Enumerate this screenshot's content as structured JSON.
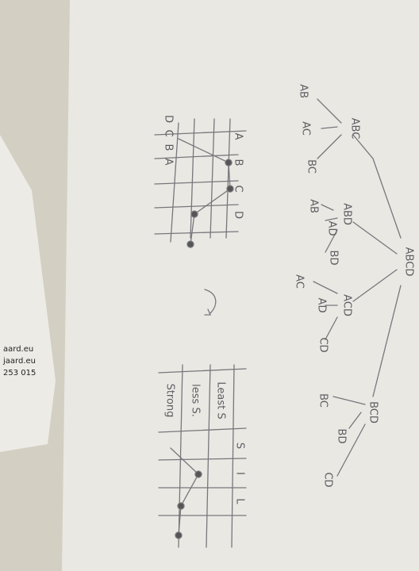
{
  "tree": {
    "root": "ABCD",
    "nodes": [
      {
        "label": "ABC",
        "children": [
          "AB",
          "AC",
          "BC"
        ]
      },
      {
        "label": "ABD",
        "children": [
          "AB",
          "AD",
          "BD"
        ]
      },
      {
        "label": "ACD",
        "children": [
          "AC",
          "AD",
          "CD"
        ]
      },
      {
        "label": "BCD",
        "children": [
          "BC",
          "BD",
          "CD"
        ]
      }
    ]
  },
  "grid1": {
    "rows": [
      "D",
      "C",
      "B",
      "A"
    ],
    "cols": [
      "A",
      "B",
      "C",
      "D"
    ]
  },
  "grid2": {
    "cols": [
      "S",
      "I",
      "L"
    ],
    "rows": [
      "Least S",
      "less S.",
      "Strong"
    ]
  },
  "card": {
    "lines": [
      "aard.eu",
      "jaard.eu",
      "253 015"
    ]
  }
}
